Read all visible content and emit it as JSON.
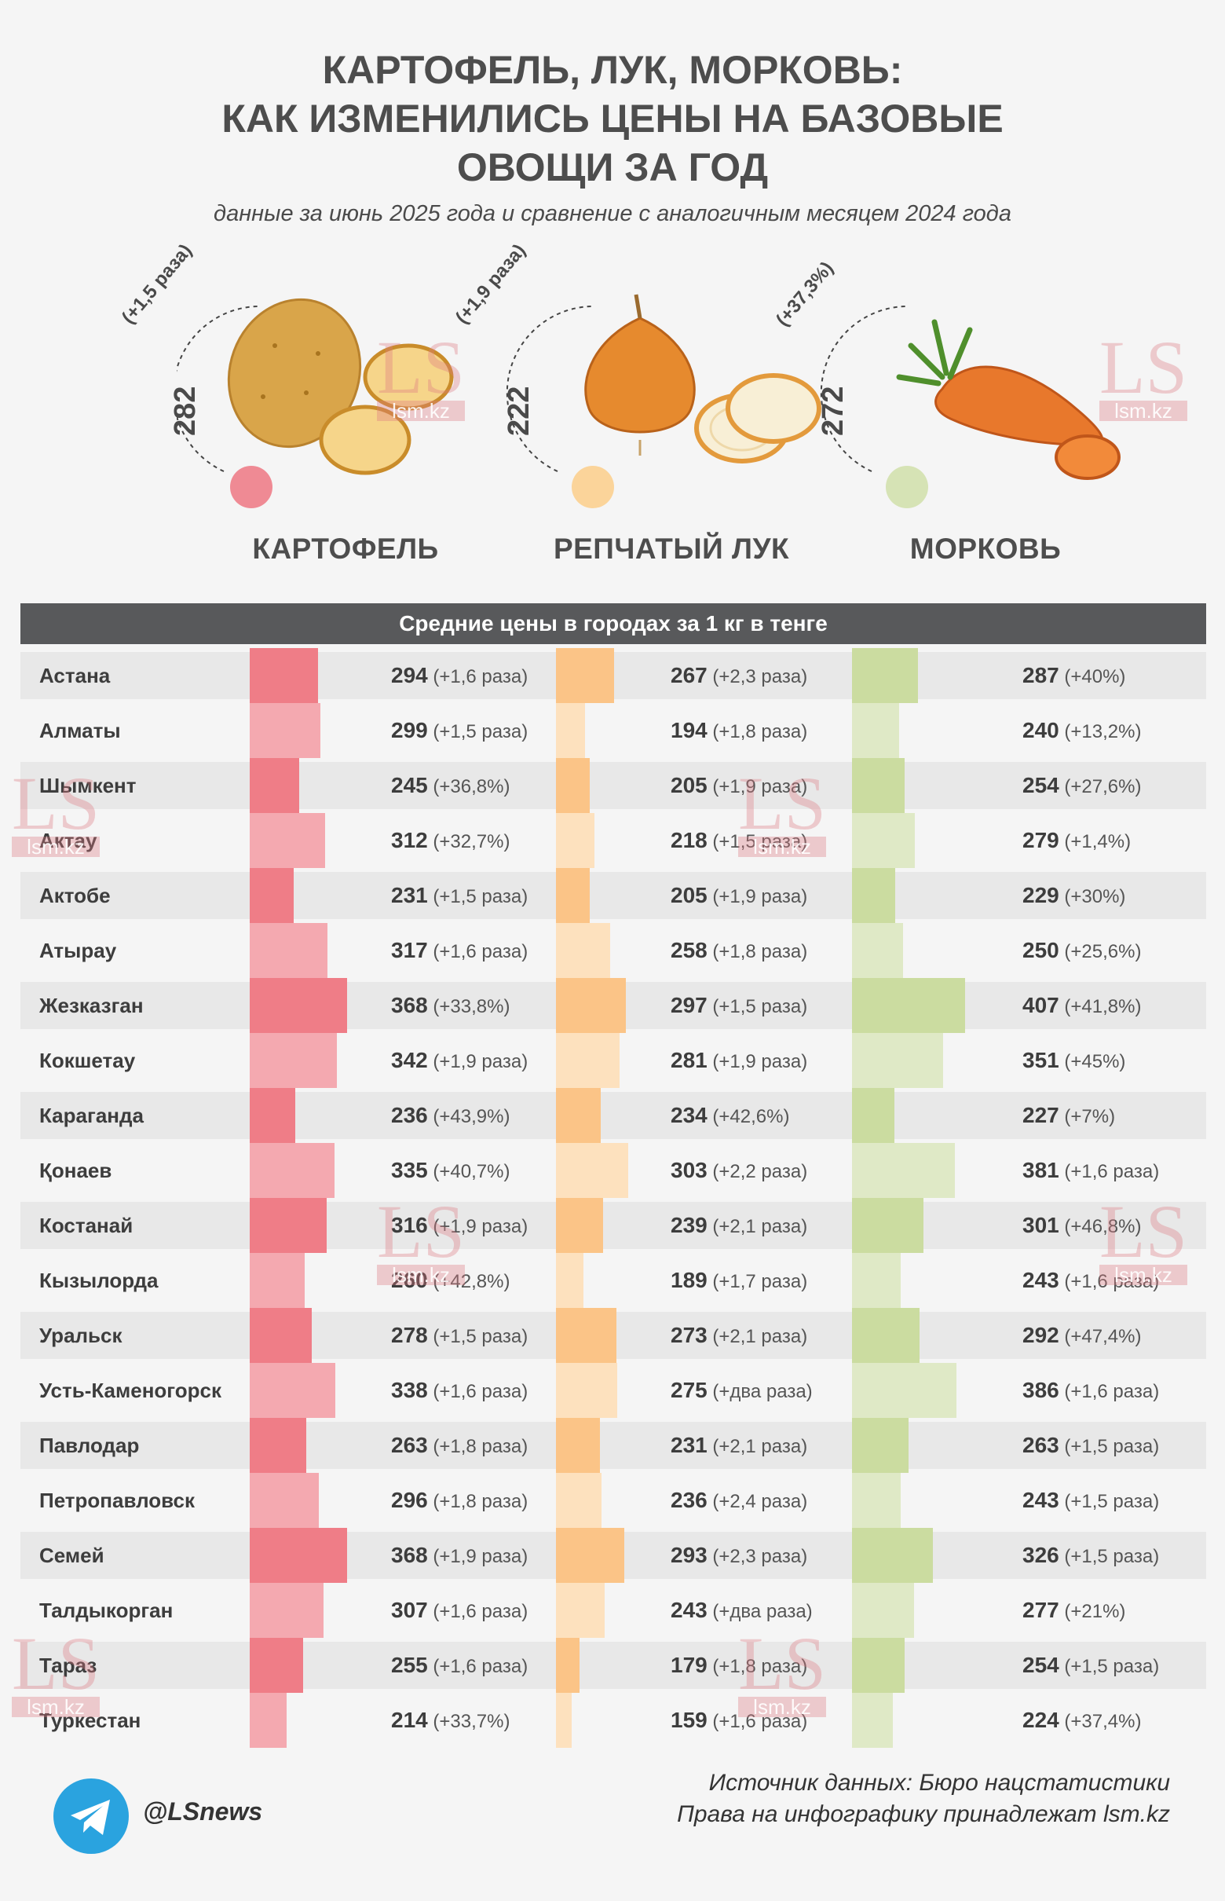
{
  "title_lines": [
    "КАРТОФЕЛЬ, ЛУК, МОРКОВЬ:",
    "КАК ИЗМЕНИЛИСЬ ЦЕНЫ НА БАЗОВЫЕ",
    "ОВОЩИ ЗА ГОД"
  ],
  "subtitle": "данные за июнь 2025 года и сравнение с аналогичным месяцем 2024 года",
  "vegetables": [
    {
      "name": "КАРТОФЕЛЬ",
      "price": "282",
      "change": "(+1,5 раза)",
      "dot_color": "#ef8a94"
    },
    {
      "name": "РЕПЧАТЫЙ ЛУК",
      "price": "222",
      "change": "(+1,9 раза)",
      "dot_color": "#fbd49a"
    },
    {
      "name": "МОРКОВЬ",
      "price": "272",
      "change": "(+37,3%)",
      "dot_color": "#d6e3b5"
    }
  ],
  "table_header": "Средние цены в городах за 1 кг в тенге",
  "colors": {
    "potato_dark": "#ef7d87",
    "potato_light": "#f4a9b0",
    "onion_dark": "#fbc487",
    "onion_light": "#fde1be",
    "carrot_dark": "#cbdca0",
    "carrot_light": "#dfe9c6",
    "header_bg": "#58595b",
    "background": "#f5f5f5",
    "stripe": "#e8e8e8"
  },
  "chart_data": {
    "type": "bar",
    "unit": "тенге за 1 кг",
    "categories": [
      "Астана",
      "Алматы",
      "Шымкент",
      "Актау",
      "Актобе",
      "Атырау",
      "Жезказган",
      "Кокшетау",
      "Караганда",
      "Қонаев",
      "Костанай",
      "Кызылорда",
      "Уральск",
      "Усть-Каменогорск",
      "Павлодар",
      "Петропавловск",
      "Семей",
      "Талдыкорган",
      "Тараз",
      "Туркестан"
    ],
    "series": [
      {
        "name": "КАРТОФЕЛЬ",
        "values": [
          294,
          299,
          245,
          312,
          231,
          317,
          368,
          342,
          236,
          335,
          316,
          260,
          278,
          338,
          263,
          296,
          368,
          307,
          255,
          214
        ],
        "changes": [
          "(+1,6 раза)",
          "(+1,5 раза)",
          "(+36,8%)",
          "(+32,7%)",
          "(+1,5 раза)",
          "(+1,6 раза)",
          "(+33,8%)",
          "(+1,9 раза)",
          "(+43,9%)",
          "(+40,7%)",
          "(+1,9 раза)",
          "(+42,8%)",
          "(+1,5 раза)",
          "(+1,6 раза)",
          "(+1,8 раза)",
          "(+1,8 раза)",
          "(+1,9 раза)",
          "(+1,6 раза)",
          "(+1,6 раза)",
          "(+33,7%)"
        ]
      },
      {
        "name": "РЕПЧАТЫЙ ЛУК",
        "values": [
          267,
          194,
          205,
          218,
          205,
          258,
          297,
          281,
          234,
          303,
          239,
          189,
          273,
          275,
          231,
          236,
          293,
          243,
          179,
          159
        ],
        "changes": [
          "(+2,3 раза)",
          "(+1,8 раза)",
          "(+1,9 раза)",
          "(+1,5 раза)",
          "(+1,9 раза)",
          "(+1,8 раза)",
          "(+1,5 раза)",
          "(+1,9 раза)",
          "(+42,6%)",
          "(+2,2 раза)",
          "(+2,1 раза)",
          "(+1,7 раза)",
          "(+2,1 раза)",
          "(+два раза)",
          "(+2,1 раза)",
          "(+2,4 раза)",
          "(+2,3 раза)",
          "(+два раза)",
          "(+1,8 раза)",
          "(+1,6 раза)"
        ]
      },
      {
        "name": "МОРКОВЬ",
        "values": [
          287,
          240,
          254,
          279,
          229,
          250,
          407,
          351,
          227,
          381,
          301,
          243,
          292,
          386,
          263,
          243,
          326,
          277,
          254,
          224
        ],
        "changes": [
          "(+40%)",
          "(+13,2%)",
          "(+27,6%)",
          "(+1,4%)",
          "(+30%)",
          "(+25,6%)",
          "(+41,8%)",
          "(+45%)",
          "(+7%)",
          "(+1,6 раза)",
          "(+46,8%)",
          "(+1,6 раза)",
          "(+47,4%)",
          "(+1,6 раза)",
          "(+1,5 раза)",
          "(+1,5 раза)",
          "(+1,5 раза)",
          "(+21%)",
          "(+1,5 раза)",
          "(+37,4%)"
        ]
      }
    ]
  },
  "footer": {
    "handle": "@LSnews",
    "source_line": "Источник данных: Бюро нацстатистики",
    "rights_line": "Права на инфографику принадлежат lsm.kz"
  },
  "watermark": {
    "logo": "LS",
    "site": "lsm.kz"
  },
  "icons": {
    "telegram": "telegram-icon"
  }
}
